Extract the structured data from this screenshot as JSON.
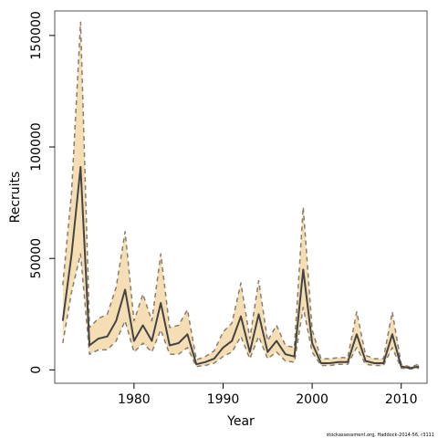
{
  "chart_data": {
    "type": "area",
    "title": "",
    "xlabel": "Year",
    "ylabel": "Recruits",
    "xlim": [
      1971.1,
      2012.9
    ],
    "ylim": [
      -6000,
      161000
    ],
    "xticks": [
      1980,
      1990,
      2000,
      2010
    ],
    "yticks": [
      0,
      50000,
      100000,
      150000
    ],
    "xtick_labels": [
      "1980",
      "1990",
      "2000",
      "2010"
    ],
    "ytick_labels": [
      "0",
      "50000",
      "100000",
      "150000"
    ],
    "grid": false,
    "legend": "none",
    "footnote": "stockassessment.org, Haddock-2014-56, r3111",
    "colors": {
      "band": "#f5deb3",
      "bound_line": "#8b7d6b",
      "estimate_line": "#444444",
      "frame": "#555555"
    },
    "x": [
      1972,
      1973,
      1974,
      1975,
      1976,
      1977,
      1978,
      1979,
      1980,
      1981,
      1982,
      1983,
      1984,
      1985,
      1986,
      1987,
      1988,
      1989,
      1990,
      1991,
      1992,
      1993,
      1994,
      1995,
      1996,
      1997,
      1998,
      1999,
      2000,
      2001,
      2002,
      2003,
      2004,
      2005,
      2006,
      2007,
      2008,
      2009,
      2010,
      2011,
      2012
    ],
    "series": [
      {
        "values": [
          22000,
          52000,
          91000,
          11000,
          14000,
          15000,
          22000,
          36000,
          13000,
          20000,
          13000,
          30000,
          11000,
          12000,
          16000,
          2500,
          3500,
          5000,
          10000,
          13000,
          24000,
          8000,
          25000,
          8000,
          13000,
          7000,
          6000,
          45000,
          12000,
          3000,
          3000,
          3500,
          3500,
          16000,
          4000,
          3000,
          3000,
          16000,
          1500,
          800,
          1500
        ]
      },
      {
        "values": [
          12000,
          35000,
          52000,
          7000,
          9000,
          9000,
          13000,
          22000,
          8000,
          12000,
          8000,
          18000,
          7000,
          7000,
          10000,
          1500,
          2000,
          3000,
          6000,
          8000,
          15000,
          5000,
          15000,
          5000,
          8000,
          4000,
          3500,
          28000,
          8000,
          2000,
          2000,
          2500,
          2500,
          10000,
          2500,
          2000,
          2000,
          10000,
          800,
          400,
          800
        ]
      },
      {
        "values": [
          38000,
          80000,
          156000,
          19000,
          23000,
          25000,
          37000,
          62000,
          22000,
          34000,
          22000,
          52000,
          19000,
          20000,
          27000,
          4500,
          6000,
          8500,
          17000,
          21000,
          39000,
          14000,
          40000,
          13000,
          20000,
          11000,
          10000,
          73000,
          18000,
          5000,
          5000,
          5500,
          5500,
          26000,
          6500,
          5000,
          5000,
          26000,
          2500,
          1300,
          2500
        ]
      }
    ]
  }
}
